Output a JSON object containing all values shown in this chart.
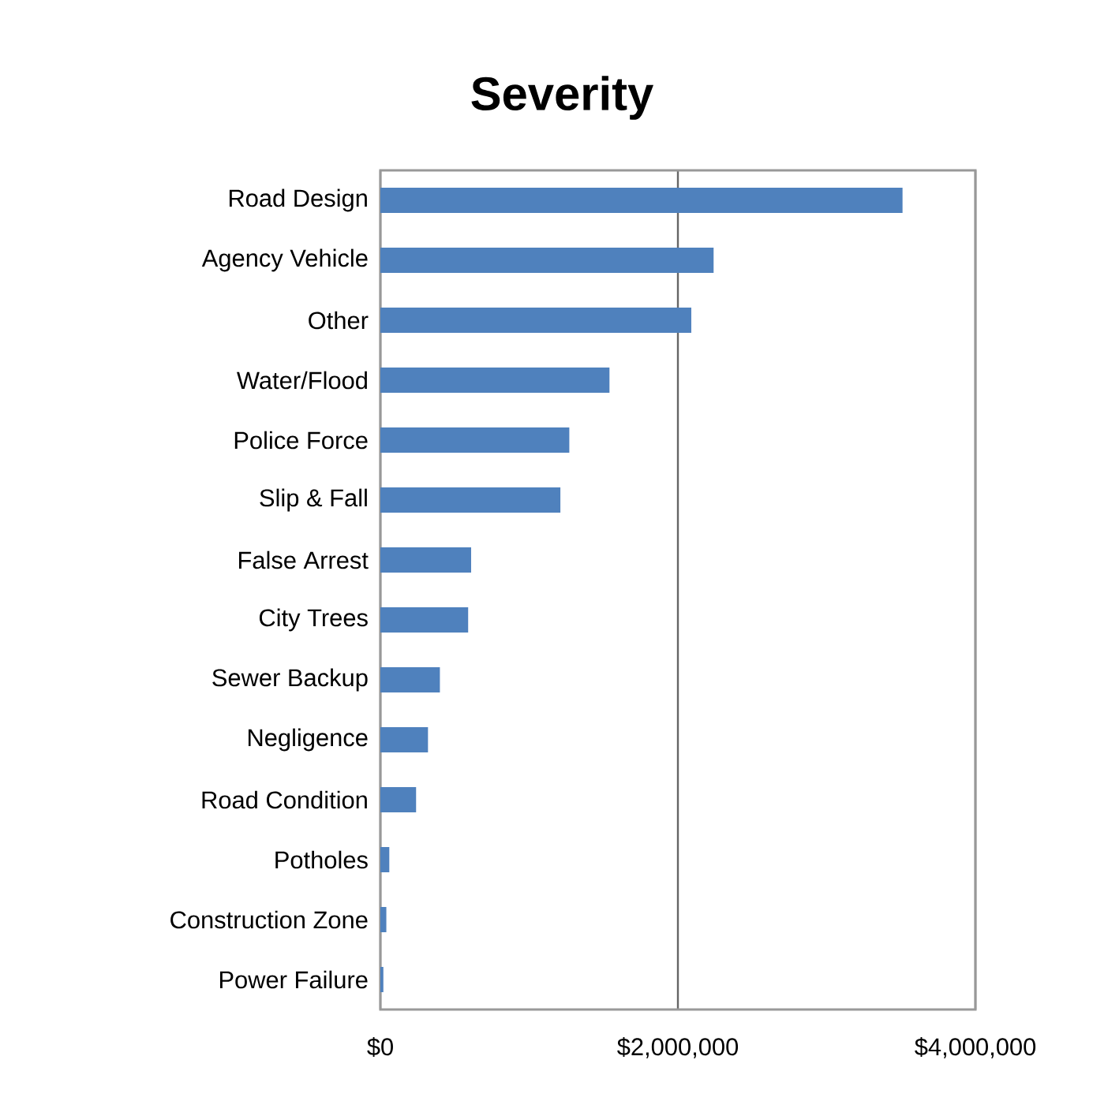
{
  "chart_data": {
    "type": "bar",
    "orientation": "horizontal",
    "title": "Severity",
    "categories": [
      "Road Design",
      "Agency Vehicle",
      "Other",
      "Water/Flood",
      "Police Force",
      "Slip & Fall",
      "False Arrest",
      "City Trees",
      "Sewer Backup",
      "Negligence",
      "Road Condition",
      "Potholes",
      "Construction Zone",
      "Power Failure"
    ],
    "values": [
      3510000,
      2240000,
      2090000,
      1540000,
      1270000,
      1210000,
      610000,
      590000,
      400000,
      320000,
      240000,
      60000,
      40000,
      20000
    ],
    "color": "#4f81bd",
    "xlim": [
      0,
      4000000
    ],
    "xticks": [
      {
        "value": 0,
        "label": "$0"
      },
      {
        "value": 2000000,
        "label": "$2,000,000"
      },
      {
        "value": 4000000,
        "label": "$4,000,000"
      }
    ],
    "grid": "x"
  }
}
